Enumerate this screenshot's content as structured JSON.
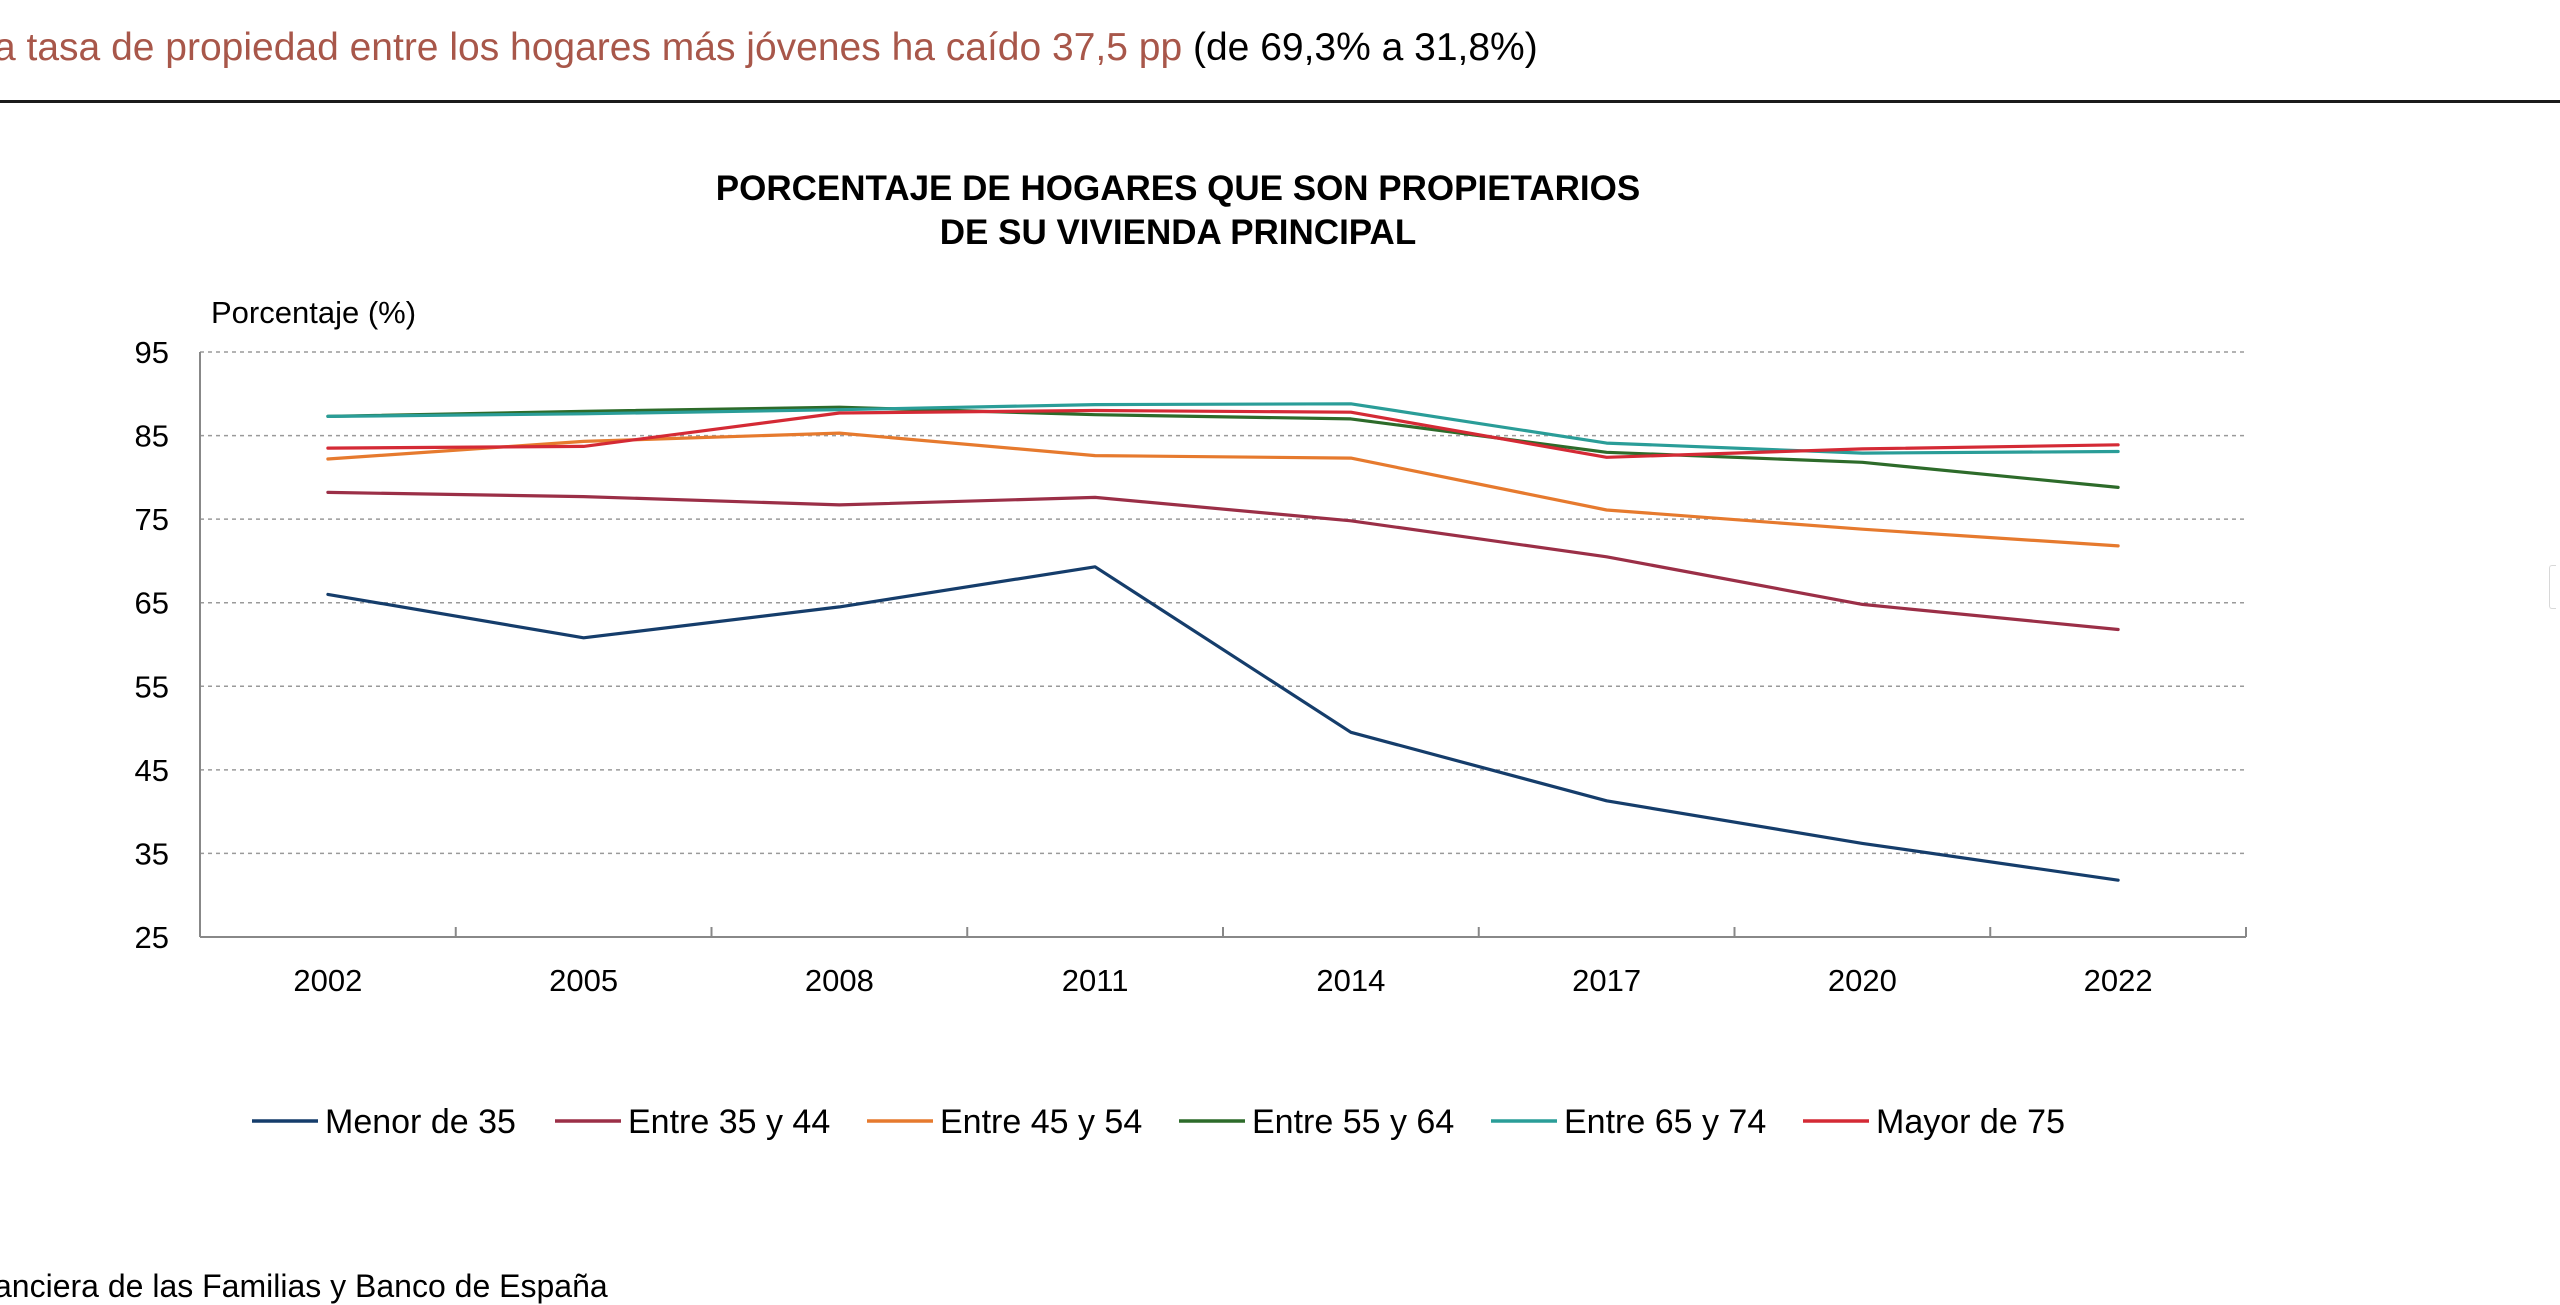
{
  "headline": {
    "highlight": "a tasa de propiedad entre los hogares más jóvenes ha caído 37,5 pp",
    "rest": "(de 69,3% a 31,8%)"
  },
  "footer": {
    "source": "anciera de las Familias y Banco de España"
  },
  "colors": {
    "headline_highlight": "#a8574a",
    "gridline": "#9a9a9a",
    "axis": "#888888"
  },
  "chart_data": {
    "type": "line",
    "title": [
      "PORCENTAJE DE HOGARES QUE SON PROPIETARIOS",
      "DE SU VIVIENDA PRINCIPAL"
    ],
    "ylabel": "Porcentaje (%)",
    "xlabel": "",
    "ylim": [
      25,
      95
    ],
    "yticks": [
      25,
      35,
      45,
      55,
      65,
      75,
      85,
      95
    ],
    "grid": true,
    "legend_position": "bottom",
    "categories": [
      "2002",
      "2005",
      "2008",
      "2011",
      "2014",
      "2017",
      "2020",
      "2022"
    ],
    "series": [
      {
        "name": "Menor de 35",
        "color": "#153d6b",
        "values": [
          66.0,
          60.8,
          64.5,
          69.3,
          49.5,
          41.3,
          36.2,
          31.8
        ]
      },
      {
        "name": "Entre 35 y 44",
        "color": "#9b2f47",
        "values": [
          78.2,
          77.7,
          76.7,
          77.6,
          74.8,
          70.5,
          64.8,
          61.8
        ]
      },
      {
        "name": "Entre 45 y 54",
        "color": "#e67a2e",
        "values": [
          82.2,
          84.3,
          85.3,
          82.6,
          82.3,
          76.1,
          73.8,
          71.8
        ]
      },
      {
        "name": "Entre 55 y 64",
        "color": "#2d6b2a",
        "values": [
          87.3,
          87.9,
          88.4,
          87.5,
          87.0,
          83.0,
          81.8,
          78.8
        ]
      },
      {
        "name": "Entre 65 y 74",
        "color": "#2a9d98",
        "values": [
          87.3,
          87.6,
          88.1,
          88.7,
          88.8,
          84.1,
          82.9,
          83.1
        ]
      },
      {
        "name": "Mayor de 75",
        "color": "#d42a35",
        "values": [
          83.5,
          83.7,
          87.7,
          88.0,
          87.8,
          82.4,
          83.4,
          83.9
        ]
      }
    ]
  }
}
